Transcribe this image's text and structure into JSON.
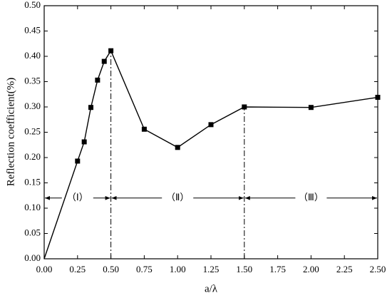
{
  "chart_data": {
    "type": "line",
    "x_label": "a/λ",
    "y_label": "Reflection  coefficient(%)",
    "x": [
      0,
      0.25,
      0.3,
      0.35,
      0.4,
      0.45,
      0.5,
      0.75,
      1.0,
      1.25,
      1.5,
      2.0,
      2.5
    ],
    "values": [
      0,
      0.193,
      0.231,
      0.299,
      0.353,
      0.39,
      0.411,
      0.256,
      0.22,
      0.265,
      0.3,
      0.299,
      0.319
    ],
    "color": "#000000",
    "xlim": [
      0,
      2.5
    ],
    "xticks": [
      {
        "value": 0,
        "label": "0.00"
      },
      {
        "value": 0.25,
        "label": "0.25"
      },
      {
        "value": 0.5,
        "label": "0.50"
      },
      {
        "value": 0.75,
        "label": "0.75"
      },
      {
        "value": 1,
        "label": "1.00"
      },
      {
        "value": 1.25,
        "label": "1.25"
      },
      {
        "value": 1.5,
        "label": "1.50"
      },
      {
        "value": 1.75,
        "label": "1.75"
      },
      {
        "value": 2,
        "label": "2.00"
      },
      {
        "value": 2.25,
        "label": "2.25"
      },
      {
        "value": 2.5,
        "label": "2.50"
      }
    ],
    "ylim": [
      0,
      0.5
    ],
    "yticks": [
      {
        "value": 0,
        "label": "0.00"
      },
      {
        "value": 0.05,
        "label": "0.05"
      },
      {
        "value": 0.1,
        "label": "0.10"
      },
      {
        "value": 0.15,
        "label": "0.15"
      },
      {
        "value": 0.2,
        "label": "0.20"
      },
      {
        "value": 0.25,
        "label": "0.25"
      },
      {
        "value": 0.3,
        "label": "0.30"
      },
      {
        "value": 0.35,
        "label": "0.35"
      },
      {
        "value": 0.4,
        "label": "0.40"
      },
      {
        "value": 0.45,
        "label": "0.45"
      },
      {
        "value": 0.5,
        "label": "0.50"
      }
    ],
    "dividers": [
      0.5,
      1.5
    ],
    "region_arrow_y": 0.12,
    "regions": [
      {
        "label": "（Ⅰ）",
        "x": [
          0,
          0.5
        ]
      },
      {
        "label": "（Ⅱ）",
        "x": [
          0.5,
          1.5
        ]
      },
      {
        "label": "（Ⅲ）",
        "x": [
          1.5,
          2.5
        ]
      }
    ]
  }
}
